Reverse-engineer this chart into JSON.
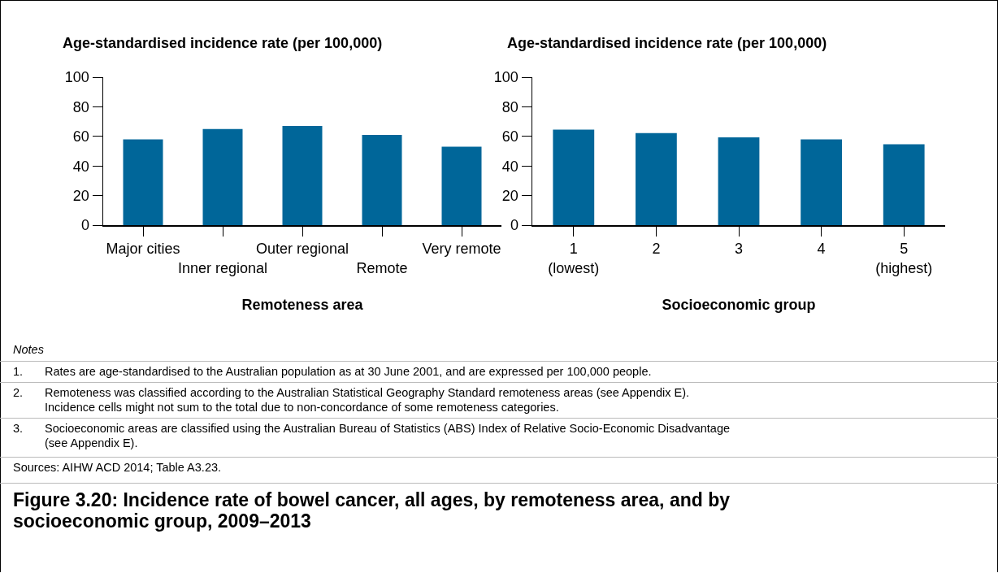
{
  "chart_data": [
    {
      "type": "bar",
      "ylabel": "Age-standardised incidence rate (per 100,000)",
      "xlabel": "Remoteness area",
      "categories": [
        "Major cities",
        "Inner regional",
        "Outer regional",
        "Remote",
        "Very remote"
      ],
      "values": [
        58,
        65,
        67,
        61,
        53
      ],
      "color": "#006699",
      "ylim": [
        0,
        100
      ],
      "yticks": [
        0,
        20,
        40,
        60,
        80,
        100
      ],
      "grid": false,
      "legend": false
    },
    {
      "type": "bar",
      "ylabel": "Age-standardised incidence rate (per 100,000)",
      "xlabel": "Socioeconomic group",
      "categories": [
        "1\n(lowest)",
        "2",
        "3",
        "4",
        "5\n(highest)"
      ],
      "values": [
        64.6,
        62.2,
        59.4,
        58,
        54.7
      ],
      "color": "#006699",
      "ylim": [
        0,
        100
      ],
      "yticks": [
        0,
        20,
        40,
        60,
        80,
        100
      ],
      "grid": false,
      "legend": false
    },
    {
      "type": "other",
      "title": "Figure 3.20: Incidence rate of bowel cancer, all ages, by remoteness area, and by\nsocioeconomic group, 2009–2013",
      "annotations": [
        "Notes",
        "1.\tRates are age-standardised to the Australian population as at 30 June 2001, and are expressed per 100,000 people.",
        "2.\tRemoteness was classified according to the Australian Statistical Geography Standard remoteness areas (see Appendix E).\nIncidence cells might not sum to the total due to non-concordance of some remoteness categories.",
        "3.\tSocioeconomic areas are classified using the Australian Bureau of Statistics (ABS) Index of Relative Socio-Economic Disadvantage\n(see Appendix E).",
        "Sources: AIHW ACD 2014; Table A3.23."
      ]
    }
  ]
}
